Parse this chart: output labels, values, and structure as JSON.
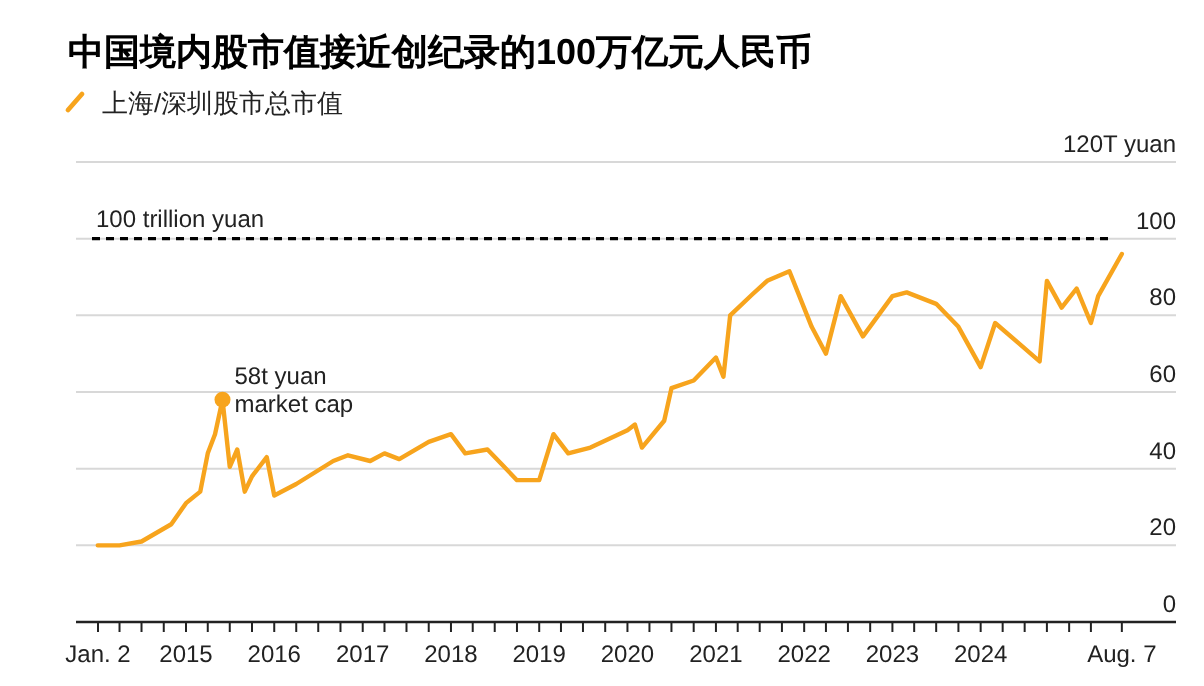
{
  "chart_data": {
    "type": "line",
    "title": "中国境内股市值接近创纪录的100万亿元人民币",
    "legend": "top left",
    "grid": "y",
    "line_style": "solid",
    "marker": "none",
    "x": [
      "2014-01",
      "2014-04",
      "2014-07",
      "2014-11",
      "2015-01",
      "2015-03",
      "2015-04",
      "2015-05",
      "2015-06",
      "2015-07",
      "2015-08",
      "2015-09",
      "2015-10",
      "2015-12",
      "2016-01",
      "2016-04",
      "2016-09",
      "2016-11",
      "2017-02",
      "2017-04",
      "2017-06",
      "2017-10",
      "2018-01",
      "2018-03",
      "2018-06",
      "2018-08",
      "2018-10",
      "2019-01",
      "2019-03",
      "2019-05",
      "2019-08",
      "2020-01",
      "2020-02",
      "2020-03",
      "2020-06",
      "2020-07",
      "2020-10",
      "2021-01",
      "2021-02",
      "2021-03",
      "2021-06",
      "2021-08",
      "2021-11",
      "2022-02",
      "2022-04",
      "2022-06",
      "2022-09",
      "2023-01",
      "2023-03",
      "2023-07",
      "2023-10",
      "2024-01",
      "2024-03",
      "2024-06",
      "2024-09",
      "2024-10",
      "2024-12",
      "2025-02",
      "2025-04",
      "2025-05",
      "2025-08-07"
    ],
    "series": [
      {
        "name": "上海/深圳股市总市值",
        "color": "#f7a41d",
        "values": [
          20,
          20,
          21,
          25.5,
          31,
          34,
          44,
          49,
          58,
          40.5,
          45,
          34,
          38,
          43,
          33,
          36,
          42,
          43.5,
          42,
          44,
          42.5,
          47,
          49,
          44,
          45,
          41,
          37,
          37,
          49,
          44,
          45.5,
          50,
          51.5,
          45.5,
          52.5,
          61,
          63,
          69,
          64,
          80,
          85.5,
          89,
          91.5,
          77,
          70,
          85,
          74.5,
          85,
          86,
          83,
          77,
          66.5,
          78,
          73,
          68,
          89,
          82,
          87,
          78,
          85,
          96
        ]
      }
    ],
    "xlim": [
      "2013-10-03",
      "2026-03-19"
    ],
    "xticks": [
      {
        "value": "2014-01-02",
        "label": "Jan. 2"
      },
      {
        "value": "2014-04-01",
        "label": null
      },
      {
        "value": "2014-07-01",
        "label": null
      },
      {
        "value": "2014-10-01",
        "label": null
      },
      {
        "value": "2015-01-01",
        "label": "2015"
      },
      {
        "value": "2015-04-01",
        "label": null
      },
      {
        "value": "2015-07-01",
        "label": null
      },
      {
        "value": "2015-10-01",
        "label": null
      },
      {
        "value": "2016-01-01",
        "label": "2016"
      },
      {
        "value": "2016-04-01",
        "label": null
      },
      {
        "value": "2016-07-01",
        "label": null
      },
      {
        "value": "2016-10-01",
        "label": null
      },
      {
        "value": "2017-01-01",
        "label": "2017"
      },
      {
        "value": "2017-04-01",
        "label": null
      },
      {
        "value": "2017-07-01",
        "label": null
      },
      {
        "value": "2017-10-01",
        "label": null
      },
      {
        "value": "2018-01-01",
        "label": "2018"
      },
      {
        "value": "2018-04-01",
        "label": null
      },
      {
        "value": "2018-07-01",
        "label": null
      },
      {
        "value": "2018-10-01",
        "label": null
      },
      {
        "value": "2019-01-01",
        "label": "2019"
      },
      {
        "value": "2019-04-01",
        "label": null
      },
      {
        "value": "2019-07-01",
        "label": null
      },
      {
        "value": "2019-10-01",
        "label": null
      },
      {
        "value": "2020-01-01",
        "label": "2020"
      },
      {
        "value": "2020-04-01",
        "label": null
      },
      {
        "value": "2020-07-01",
        "label": null
      },
      {
        "value": "2020-10-01",
        "label": null
      },
      {
        "value": "2021-01-01",
        "label": "2021"
      },
      {
        "value": "2021-04-01",
        "label": null
      },
      {
        "value": "2021-07-01",
        "label": null
      },
      {
        "value": "2021-10-01",
        "label": null
      },
      {
        "value": "2022-01-01",
        "label": "2022"
      },
      {
        "value": "2022-04-01",
        "label": null
      },
      {
        "value": "2022-07-01",
        "label": null
      },
      {
        "value": "2022-10-01",
        "label": null
      },
      {
        "value": "2023-01-01",
        "label": "2023"
      },
      {
        "value": "2023-04-01",
        "label": null
      },
      {
        "value": "2023-07-01",
        "label": null
      },
      {
        "value": "2023-10-01",
        "label": null
      },
      {
        "value": "2024-01-01",
        "label": "2024"
      },
      {
        "value": "2024-04-01",
        "label": null
      },
      {
        "value": "2024-07-01",
        "label": null
      },
      {
        "value": "2024-10-01",
        "label": null
      },
      {
        "value": "2025-01-01",
        "label": null
      },
      {
        "value": "2025-04-01",
        "label": null
      },
      {
        "value": "2025-08-07",
        "label": "Aug. 7"
      }
    ],
    "ylim": [
      0,
      120
    ],
    "yticks": [
      0,
      20,
      40,
      60,
      80,
      100,
      {
        "value": 120,
        "label": "120T yuan"
      }
    ],
    "ref_lines": [
      {
        "axis": "y",
        "value": 100,
        "label": "100 trillion yuan",
        "color": "#000000",
        "line_style": "dashed"
      }
    ],
    "annotations": [
      {
        "text": "58t yuan\nmarket cap",
        "x": "2015-06",
        "y": 58
      }
    ]
  }
}
